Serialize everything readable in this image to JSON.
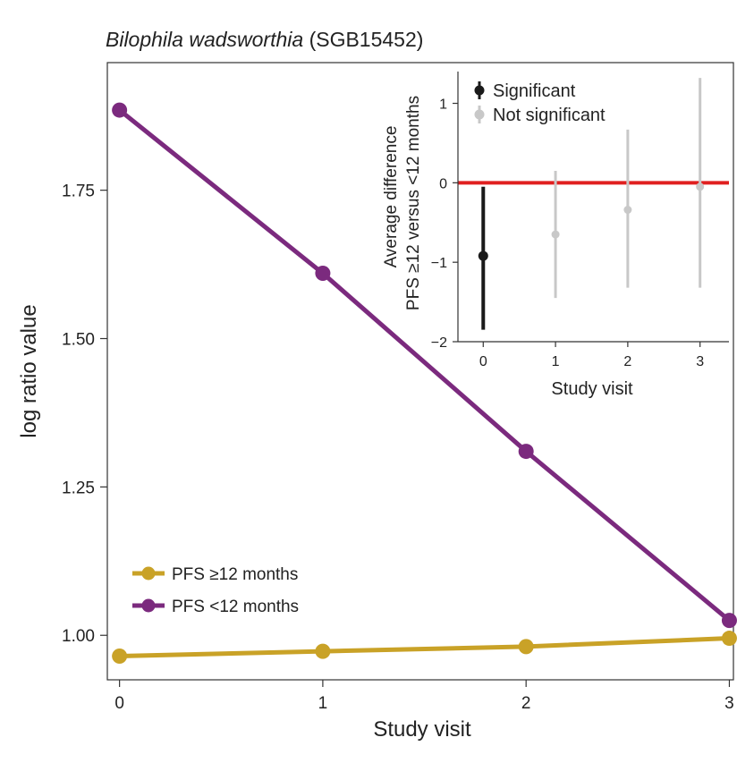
{
  "figure": {
    "title_italic": "Bilophila wadsworthia",
    "title_rest": " (SGB15452)"
  },
  "chart_data": [
    {
      "type": "line",
      "xlabel": "Study visit",
      "ylabel": "log ratio value",
      "x": [
        0,
        1,
        2,
        3
      ],
      "x_ticks": [
        "0",
        "1",
        "2",
        "3"
      ],
      "y_ticks": [
        "1.00",
        "1.25",
        "1.50",
        "1.75"
      ],
      "y_tick_values": [
        1.0,
        1.25,
        1.5,
        1.75
      ],
      "xlim": [
        -0.06,
        3.02
      ],
      "ylim": [
        0.925,
        1.965
      ],
      "grid": false,
      "legend_position": "bottom-left",
      "series": [
        {
          "name": "PFS ≥12 months",
          "color": "#C9A227",
          "values": [
            0.965,
            0.973,
            0.981,
            0.995
          ]
        },
        {
          "name": "PFS <12 months",
          "color": "#7B2A7E",
          "values": [
            1.885,
            1.61,
            1.31,
            1.025
          ]
        }
      ]
    },
    {
      "type": "scatter",
      "inset": true,
      "xlabel": "Study visit",
      "ylabel_lines": [
        "Average difference",
        "PFS ≥12 versus <12 months"
      ],
      "x": [
        0,
        1,
        2,
        3
      ],
      "x_ticks": [
        "0",
        "1",
        "2",
        "3"
      ],
      "y_ticks": [
        "−2",
        "−1",
        "0",
        "1"
      ],
      "y_tick_values": [
        -2,
        -1,
        0,
        1
      ],
      "xlim": [
        -0.35,
        3.4
      ],
      "ylim": [
        -2.0,
        1.4
      ],
      "reference_line": {
        "y": 0,
        "color": "#E02020"
      },
      "legend_position": "top-left",
      "legend": [
        {
          "name": "Significant",
          "color": "#1a1a1a"
        },
        {
          "name": "Not significant",
          "color": "#c8c8c8"
        }
      ],
      "points": [
        {
          "x": 0,
          "y": -0.92,
          "lower": -1.85,
          "upper": -0.05,
          "significant": true
        },
        {
          "x": 1,
          "y": -0.65,
          "lower": -1.45,
          "upper": 0.15,
          "significant": false
        },
        {
          "x": 2,
          "y": -0.34,
          "lower": -1.32,
          "upper": 0.67,
          "significant": false
        },
        {
          "x": 3,
          "y": -0.05,
          "lower": -1.32,
          "upper": 1.32,
          "significant": false
        }
      ]
    }
  ]
}
